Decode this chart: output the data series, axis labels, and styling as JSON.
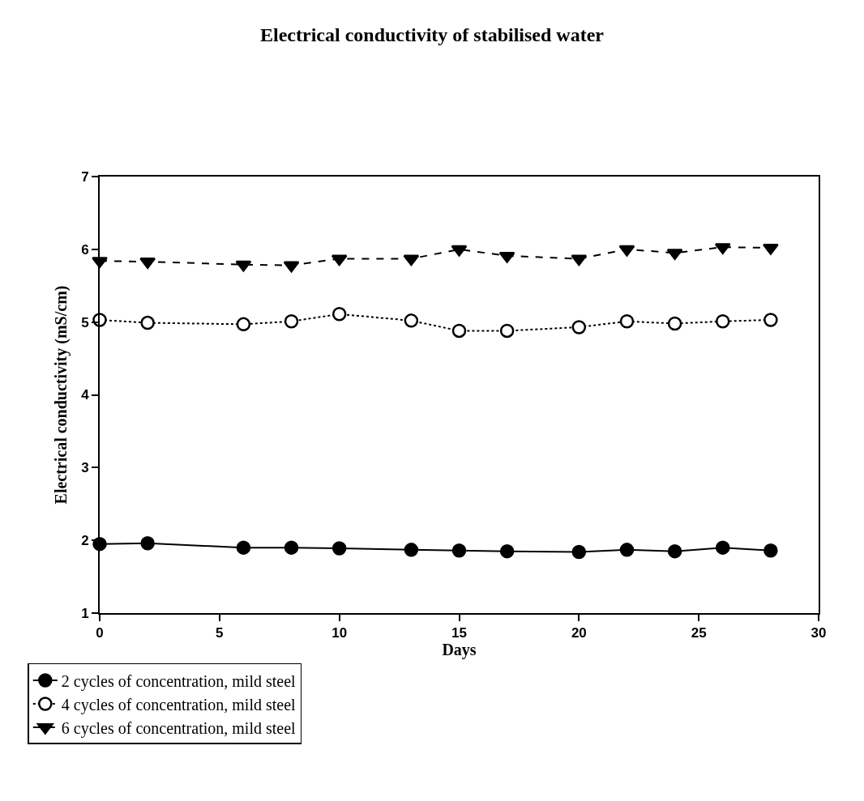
{
  "chart_data": {
    "type": "line",
    "title": "Electrical conductivity of stabilised water",
    "xlabel": "Days",
    "ylabel": "Electrical conductivity (mS/cm)",
    "x": [
      0,
      2,
      6,
      8,
      10,
      13,
      15,
      17,
      20,
      22,
      24,
      26,
      28
    ],
    "series": [
      {
        "name": "2 cycles of concentration, mild steel",
        "color": "#000000",
        "marker": "circle",
        "line_style": "solid",
        "values": [
          1.95,
          1.96,
          1.9,
          1.9,
          1.89,
          1.87,
          1.86,
          1.85,
          1.84,
          1.87,
          1.85,
          1.9,
          1.86
        ]
      },
      {
        "name": "4 cycles of concentration, mild steel",
        "color": "#000000",
        "marker": "circle-open",
        "line_style": "dotted",
        "values": [
          5.03,
          4.99,
          4.97,
          5.01,
          5.11,
          5.02,
          4.88,
          4.88,
          4.93,
          5.01,
          4.98,
          5.01,
          5.03
        ]
      },
      {
        "name": "6 cycles of concentration, mild steel",
        "color": "#000000",
        "marker": "triangle",
        "line_style": "dashed",
        "values": [
          5.84,
          5.83,
          5.79,
          5.78,
          5.87,
          5.87,
          6.0,
          5.91,
          5.87,
          6.0,
          5.95,
          6.03,
          6.02
        ]
      }
    ],
    "xlim": [
      0,
      30
    ],
    "xticks": [
      0,
      5,
      10,
      15,
      20,
      25,
      30
    ],
    "ylim": [
      1,
      7
    ],
    "yticks": [
      1,
      2,
      3,
      4,
      5,
      6,
      7
    ],
    "legend": "bottom left"
  }
}
